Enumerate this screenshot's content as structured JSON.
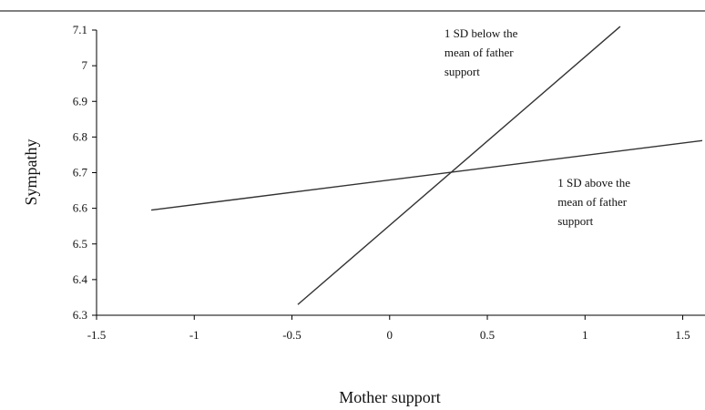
{
  "chart_data": {
    "type": "line",
    "title": "",
    "xlabel": "Mother support",
    "ylabel": "Sympathy",
    "xlim": [
      -1.5,
      1.6
    ],
    "ylim": [
      6.3,
      7.1
    ],
    "xticks": [
      -1.5,
      -1,
      -0.5,
      0,
      0.5,
      1,
      1.5
    ],
    "xtick_labels": [
      "-1.5",
      "-1",
      "-0.5",
      "0",
      "0.5",
      "1",
      "1.5"
    ],
    "yticks": [
      6.3,
      6.4,
      6.5,
      6.6,
      6.7,
      6.8,
      6.9,
      7,
      7.1
    ],
    "ytick_labels": [
      "6.3",
      "6.4",
      "6.5",
      "6.6",
      "6.7",
      "6.8",
      "6.9",
      "7",
      "7.1"
    ],
    "grid": false,
    "series": [
      {
        "name": "1 SD below the mean of father support",
        "x": [
          -0.47,
          1.18
        ],
        "y": [
          6.33,
          7.11
        ]
      },
      {
        "name": "1 SD above the mean of father support",
        "x": [
          -1.22,
          1.6
        ],
        "y": [
          6.595,
          6.79
        ]
      }
    ],
    "annotations": [
      {
        "lines": [
          "1 SD below the",
          "mean of father",
          "support"
        ],
        "x": 0.28,
        "y": 7.08
      },
      {
        "lines": [
          "1 SD above the",
          "mean of father",
          "support"
        ],
        "x": 0.86,
        "y": 6.66
      }
    ]
  }
}
